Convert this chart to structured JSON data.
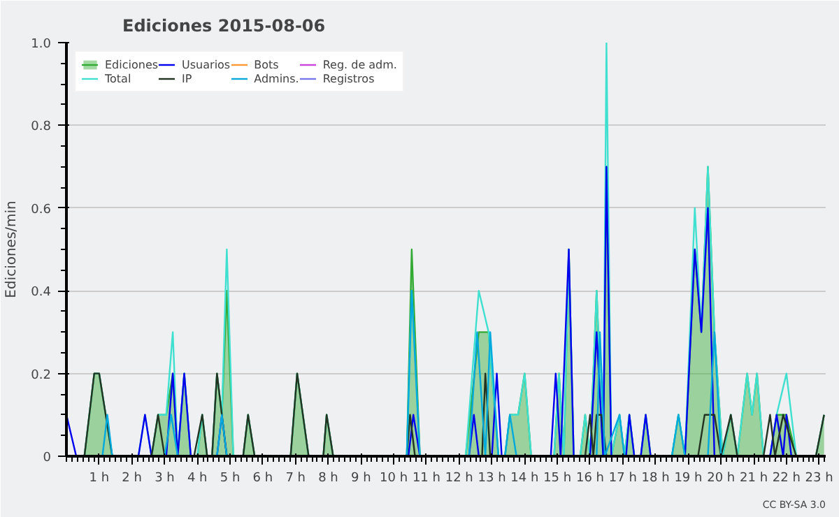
{
  "chart_data": {
    "type": "line",
    "title": "Ediciones  2015-08-06",
    "ylabel": "Ediciones/min",
    "xlim": [
      0,
      23.2
    ],
    "xticks": [
      {
        "value": 1,
        "label": "1 h"
      },
      {
        "value": 2,
        "label": "2 h"
      },
      {
        "value": 3,
        "label": "3 h"
      },
      {
        "value": 4,
        "label": "4 h"
      },
      {
        "value": 5,
        "label": "5 h"
      },
      {
        "value": 6,
        "label": "6 h"
      },
      {
        "value": 7,
        "label": "7 h"
      },
      {
        "value": 8,
        "label": "8 h"
      },
      {
        "value": 9,
        "label": "9 h"
      },
      {
        "value": 10,
        "label": "10 h"
      },
      {
        "value": 11,
        "label": "11 h"
      },
      {
        "value": 12,
        "label": "12 h"
      },
      {
        "value": 13,
        "label": "13 h"
      },
      {
        "value": 14,
        "label": "14 h"
      },
      {
        "value": 15,
        "label": "15 h"
      },
      {
        "value": 16,
        "label": "16 h"
      },
      {
        "value": 17,
        "label": "17 h"
      },
      {
        "value": 18,
        "label": "18 h"
      },
      {
        "value": 19,
        "label": "19 h"
      },
      {
        "value": 20,
        "label": "20 h"
      },
      {
        "value": 21,
        "label": "21 h"
      },
      {
        "value": 22,
        "label": "22 h"
      },
      {
        "value": 23,
        "label": "23 h"
      }
    ],
    "ylim": [
      0,
      1.0
    ],
    "yticks": [
      0,
      {
        "value": 0.2,
        "label": "0.2"
      },
      {
        "value": 0.4,
        "label": "0.4"
      },
      {
        "value": 0.6,
        "label": "0.6"
      },
      {
        "value": 0.8,
        "label": "0.8"
      },
      {
        "value": 1.0,
        "label": "1.0"
      }
    ],
    "grid": "y",
    "legend": "top left",
    "annotations": [
      "CC BY-SA 3.0"
    ],
    "series": [
      {
        "name": "Ediciones",
        "type": "area",
        "color": "#33aa33",
        "x": [
          0,
          0.55,
          0.85,
          1.0,
          1.4,
          2.6,
          2.8,
          3.05,
          3.25,
          3.4,
          3.6,
          3.8,
          4.0,
          4.15,
          4.3,
          4.45,
          4.6,
          4.75,
          4.9,
          5.1,
          5.4,
          5.55,
          5.75,
          6.85,
          7.05,
          7.4,
          7.85,
          7.95,
          8.15,
          10.4,
          10.55,
          10.8,
          12.2,
          12.6,
          12.9,
          13.2,
          13.4,
          13.55,
          13.8,
          14.0,
          14.2,
          14.9,
          15.05,
          15.2,
          15.35,
          15.5,
          15.7,
          15.85,
          16.0,
          16.2,
          16.4,
          16.5,
          16.65,
          16.9,
          17.05,
          17.2,
          17.35,
          17.55,
          17.7,
          17.85,
          18.5,
          18.7,
          18.9,
          19.2,
          19.4,
          19.6,
          19.8,
          20.05,
          20.3,
          20.5,
          20.8,
          20.95,
          21.1,
          21.3,
          21.5,
          21.7,
          22.0,
          22.3,
          22.9,
          23.15
        ],
        "values": [
          0,
          0,
          0.2,
          0.2,
          0,
          0,
          0.1,
          0.1,
          0.2,
          0,
          0.2,
          0,
          0,
          0.1,
          0,
          0,
          0.2,
          0.1,
          0.4,
          0,
          0,
          0.1,
          0,
          0,
          0.2,
          0,
          0,
          0.1,
          0,
          0,
          0.5,
          0,
          0,
          0.3,
          0.3,
          0,
          0,
          0.1,
          0.1,
          0.2,
          0,
          0,
          0.2,
          0,
          0.5,
          0,
          0,
          0.1,
          0,
          0.4,
          0,
          0.7,
          0,
          0.1,
          0,
          0.1,
          0,
          0,
          0.1,
          0,
          0,
          0.1,
          0,
          0.5,
          0.3,
          0.7,
          0.3,
          0,
          0.1,
          0,
          0.2,
          0.1,
          0.2,
          0,
          0,
          0.1,
          0.1,
          0,
          0,
          0.1
        ]
      },
      {
        "name": "Total",
        "color": "#40e0d0",
        "x": [
          0.55,
          0.85,
          1.0,
          1.4,
          2.2,
          2.4,
          2.6,
          2.8,
          3.05,
          3.25,
          3.4,
          3.6,
          3.8,
          4.0,
          4.15,
          4.3,
          4.45,
          4.6,
          4.75,
          4.9,
          5.1,
          5.4,
          5.55,
          5.75,
          6.85,
          7.05,
          7.4,
          7.85,
          7.95,
          8.15,
          10.4,
          10.55,
          10.8,
          12.2,
          12.6,
          12.9,
          13.2,
          13.4,
          13.55,
          13.8,
          14.0,
          14.2,
          14.9,
          15.05,
          15.2,
          15.35,
          15.5,
          15.7,
          15.85,
          16.0,
          16.2,
          16.4,
          16.5,
          16.65,
          16.9,
          17.05,
          17.2,
          17.35,
          17.55,
          17.7,
          17.85,
          18.5,
          18.7,
          18.9,
          19.2,
          19.4,
          19.6,
          19.8,
          20.05,
          20.3,
          20.5,
          20.8,
          20.95,
          21.1,
          21.3,
          21.5,
          21.7,
          22.0,
          22.3,
          22.9,
          23.15
        ],
        "values": [
          0,
          0.2,
          0.2,
          0,
          0,
          0.1,
          0,
          0.1,
          0.1,
          0.3,
          0,
          0.2,
          0,
          0,
          0.1,
          0,
          0,
          0.2,
          0.1,
          0.5,
          0,
          0,
          0.1,
          0,
          0,
          0.2,
          0,
          0,
          0.1,
          0,
          0,
          0.4,
          0,
          0,
          0.4,
          0.3,
          0,
          0,
          0.1,
          0.1,
          0.2,
          0,
          0,
          0.2,
          0,
          0.5,
          0,
          0,
          0.1,
          0,
          0.4,
          0,
          1.0,
          0,
          0.1,
          0,
          0.1,
          0,
          0,
          0.1,
          0,
          0,
          0.1,
          0,
          0.6,
          0.3,
          0.7,
          0.3,
          0,
          0.1,
          0,
          0.2,
          0.1,
          0.2,
          0,
          0,
          0.1,
          0.2,
          0,
          0,
          0.1
        ]
      },
      {
        "name": "Usuarios",
        "color": "#0000ee",
        "x": [
          0,
          0.3,
          2.2,
          2.4,
          2.6,
          3.05,
          3.25,
          3.4,
          3.6,
          3.8,
          4.6,
          4.75,
          4.9,
          10.45,
          10.6,
          10.8,
          12.3,
          12.45,
          12.6,
          13.0,
          13.15,
          13.3,
          14.8,
          14.95,
          15.1,
          15.35,
          15.5,
          16.0,
          16.2,
          16.4,
          16.5,
          16.65,
          17.1,
          17.2,
          17.35,
          17.55,
          17.7,
          17.85,
          18.9,
          19.2,
          19.4,
          19.6,
          19.8,
          21.5,
          21.7,
          21.9,
          22.0,
          22.15
        ],
        "values": [
          0.1,
          0,
          0,
          0.1,
          0,
          0,
          0.2,
          0,
          0.2,
          0,
          0,
          0.1,
          0,
          0,
          0.1,
          0,
          0,
          0.1,
          0,
          0,
          0.2,
          0,
          0,
          0.2,
          0,
          0.5,
          0,
          0,
          0.3,
          0,
          0.7,
          0,
          0,
          0.1,
          0,
          0,
          0.1,
          0,
          0,
          0.5,
          0.3,
          0.6,
          0,
          0,
          0.1,
          0,
          0.1,
          0
        ]
      },
      {
        "name": "IP",
        "color": "#223322",
        "x": [
          0.55,
          0.85,
          1.0,
          1.4,
          2.6,
          2.8,
          3.0,
          3.9,
          4.15,
          4.3,
          4.45,
          4.6,
          4.75,
          4.9,
          5.4,
          5.55,
          5.75,
          6.85,
          7.05,
          7.4,
          7.85,
          7.95,
          8.15,
          10.4,
          10.5,
          10.65,
          12.7,
          12.8,
          12.95,
          15.85,
          16.0,
          16.1,
          16.2,
          16.35,
          16.5,
          19.3,
          19.5,
          19.8,
          20.0,
          20.3,
          20.5,
          21.3,
          21.5,
          21.65,
          21.9,
          22.3,
          22.9,
          23.15
        ],
        "values": [
          0,
          0.2,
          0.2,
          0,
          0,
          0.1,
          0,
          0,
          0.1,
          0,
          0,
          0.2,
          0.1,
          0,
          0,
          0.1,
          0,
          0,
          0.2,
          0,
          0,
          0.1,
          0,
          0,
          0.1,
          0,
          0,
          0.2,
          0,
          0,
          0.1,
          0,
          0.1,
          0.1,
          0,
          0,
          0.1,
          0.1,
          0,
          0.1,
          0,
          0,
          0.1,
          0,
          0.1,
          0,
          0,
          0.1
        ]
      },
      {
        "name": "Bots",
        "color": "#ff9933"
      },
      {
        "name": "Admins.",
        "color": "#00aadd",
        "x": [
          1.1,
          1.25,
          1.4,
          3.0,
          3.2,
          3.4,
          4.6,
          4.75,
          4.9,
          10.4,
          10.55,
          10.8,
          12.3,
          12.55,
          12.8,
          12.95,
          13.2,
          13.4,
          13.55,
          13.75,
          16.2,
          16.3,
          16.45,
          16.9,
          17.05,
          18.5,
          18.7,
          18.9,
          19.6,
          19.8,
          20.0
        ],
        "values": [
          0,
          0.1,
          0,
          0,
          0.1,
          0,
          0,
          0.1,
          0,
          0,
          0.4,
          0,
          0,
          0.3,
          0,
          0.3,
          0,
          0,
          0.1,
          0,
          0,
          0.3,
          0,
          0.1,
          0,
          0,
          0.1,
          0,
          0,
          0.3,
          0
        ]
      },
      {
        "name": "Reg. de adm.",
        "color": "#cc44dd"
      },
      {
        "name": "Registros",
        "color": "#7777ee"
      }
    ]
  }
}
